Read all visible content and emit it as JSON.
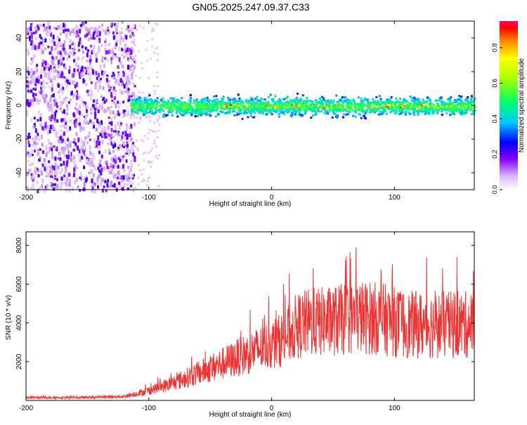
{
  "title": "GN05.2025.247.09.37.C33",
  "chart_data": [
    {
      "type": "heatmap",
      "xlabel": "Height of straight line (km)",
      "ylabel": "Frequency (Hz)",
      "xlim": [
        -200,
        165
      ],
      "ylim": [
        -50,
        50
      ],
      "xticks": [
        -200,
        -100,
        0,
        100
      ],
      "yticks": [
        -40,
        -20,
        0,
        20,
        40
      ],
      "colorbar": {
        "label": "Normalized spectral amplitude",
        "range": [
          0,
          0.95
        ],
        "ticks": [
          "0.0",
          "0.2",
          "0.4",
          "0.6",
          "0.8"
        ]
      },
      "signal_band": {
        "center_hz": 0,
        "half_width_hz": 4,
        "start_km": -115
      }
    },
    {
      "type": "line",
      "xlabel": "Height of straight line (km)",
      "ylabel": "SNR (10 * v/v)",
      "xlim": [
        -200,
        165
      ],
      "ylim": [
        0,
        8700
      ],
      "xticks": [
        -200,
        -100,
        0,
        100
      ],
      "yticks": [
        2000,
        4000,
        6000,
        8000
      ],
      "color": "#ee3333",
      "series": [
        {
          "name": "SNR",
          "x": [
            -200,
            -150,
            -120,
            -100,
            -80,
            -60,
            -40,
            -20,
            0,
            10,
            20,
            30,
            50,
            70,
            90,
            110,
            130,
            150,
            165
          ],
          "values": [
            150,
            150,
            200,
            500,
            900,
            1400,
            1900,
            2400,
            2900,
            3200,
            3800,
            4000,
            4100,
            4300,
            4200,
            3900,
            3900,
            3900,
            3900
          ]
        }
      ]
    }
  ]
}
